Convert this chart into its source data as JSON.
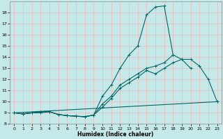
{
  "bg_color": "#c5e8e8",
  "grid_color": "#f0b8b8",
  "line_color": "#006666",
  "xlabel": "Humidex (Indice chaleur)",
  "x_values": [
    0,
    1,
    2,
    3,
    4,
    5,
    6,
    7,
    8,
    9,
    10,
    11,
    12,
    13,
    14,
    15,
    16,
    17,
    18,
    19,
    20,
    21,
    22,
    23
  ],
  "line1_y": [
    9.0,
    8.9,
    9.0,
    9.0,
    9.1,
    8.85,
    8.75,
    8.7,
    8.65,
    8.8,
    10.5,
    11.5,
    13.0,
    14.2,
    15.0,
    17.8,
    18.5,
    18.6,
    14.2,
    null,
    null,
    null,
    null,
    null
  ],
  "line2_y": [
    9.0,
    8.9,
    9.0,
    9.1,
    9.1,
    8.85,
    8.75,
    8.7,
    8.65,
    8.8,
    9.8,
    10.5,
    11.5,
    12.0,
    12.5,
    13.0,
    13.2,
    13.5,
    14.2,
    13.8,
    13.0,
    null,
    null,
    null
  ],
  "line3_y": [
    9.0,
    8.9,
    9.0,
    9.1,
    9.1,
    8.85,
    8.75,
    8.7,
    8.65,
    8.8,
    9.5,
    10.3,
    11.2,
    11.7,
    12.2,
    12.8,
    12.5,
    13.0,
    13.5,
    13.8,
    13.8,
    13.2,
    12.0,
    10.0
  ],
  "line4_y_start": 9.0,
  "line4_y_end": 10.0,
  "xlim": [
    -0.5,
    23.5
  ],
  "ylim": [
    8.0,
    19.0
  ],
  "yticks": [
    8,
    9,
    10,
    11,
    12,
    13,
    14,
    15,
    16,
    17,
    18
  ],
  "xticks": [
    0,
    1,
    2,
    3,
    4,
    5,
    6,
    7,
    8,
    9,
    10,
    11,
    12,
    13,
    14,
    15,
    16,
    17,
    18,
    19,
    20,
    21,
    22,
    23
  ]
}
